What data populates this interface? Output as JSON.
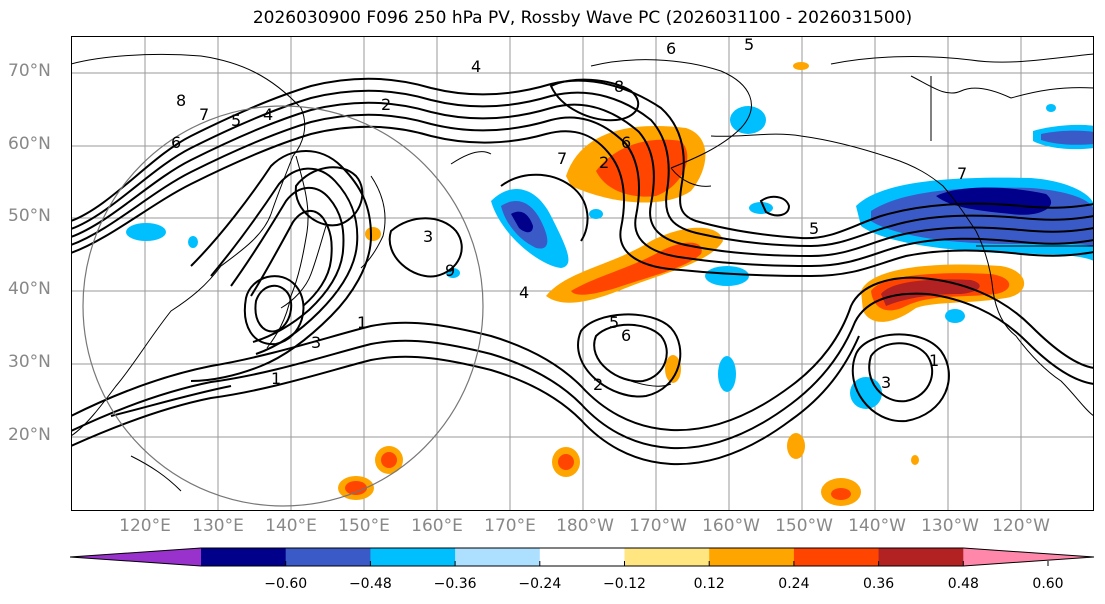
{
  "title": "2026030900 F096 250 hPa PV, Rossby Wave PC (2026031100 - 2026031500)",
  "longitude_labels": [
    "120°E",
    "130°E",
    "140°E",
    "150°E",
    "160°E",
    "170°E",
    "180°W",
    "170°W",
    "160°W",
    "150°W",
    "140°W",
    "130°W",
    "120°W"
  ],
  "latitude_labels": [
    "70°N",
    "60°N",
    "50°N",
    "40°N",
    "30°N",
    "20°N"
  ],
  "colorbar": {
    "ticks": [
      "−0.60",
      "−0.48",
      "−0.36",
      "−0.24",
      "−0.12",
      "0.12",
      "0.24",
      "0.36",
      "0.48",
      "0.60"
    ],
    "colors": [
      "#9932CC",
      "#00008B",
      "#3A5BC7",
      "#00BFFF",
      "#ADDFFF",
      "#FFFFFF",
      "#FFE680",
      "#FFA500",
      "#FF4500",
      "#B22222",
      "#FF88AA"
    ]
  },
  "contour_labels": [
    "1",
    "2",
    "3",
    "4",
    "5",
    "6",
    "7",
    "8",
    "9"
  ],
  "colors": {
    "land": "#000000",
    "grid": "#9a9a9a",
    "contour": "#000000"
  }
}
